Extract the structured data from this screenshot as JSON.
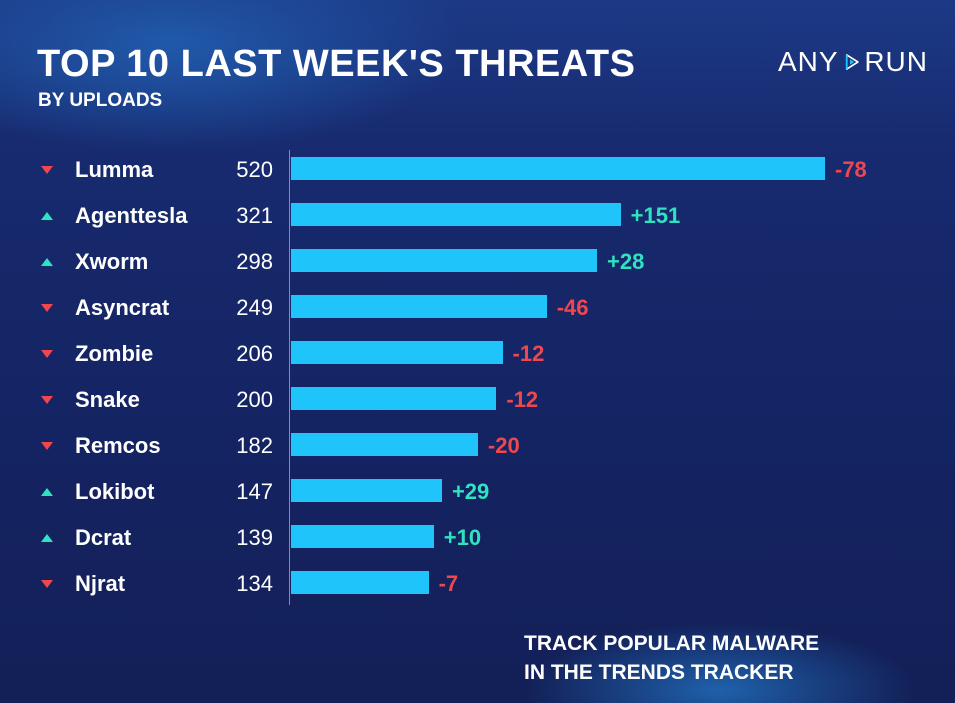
{
  "header": {
    "title": "TOP 10 LAST WEEK'S THREATS",
    "subtitle": "BY UPLOADS",
    "logo_left": "ANY",
    "logo_right": "RUN"
  },
  "footer": {
    "line1": "TRACK POPULAR MALWARE",
    "line2": "IN THE TRENDS TRACKER"
  },
  "colors": {
    "bar": "#1fc4fb",
    "up": "#2fe3c0",
    "down": "#f0474e",
    "background": "#132156"
  },
  "chart_data": {
    "type": "bar",
    "orientation": "horizontal",
    "title": "TOP 10 LAST WEEK'S THREATS",
    "subtitle": "BY UPLOADS",
    "xlim": [
      0,
      520
    ],
    "categories": [
      "Lumma",
      "Agenttesla",
      "Xworm",
      "Asyncrat",
      "Zombie",
      "Snake",
      "Remcos",
      "Lokibot",
      "Dcrat",
      "Njrat"
    ],
    "values": [
      520,
      321,
      298,
      249,
      206,
      200,
      182,
      147,
      139,
      134
    ],
    "changes": [
      "-78",
      "+151",
      "+28",
      "-46",
      "-12",
      "-12",
      "-20",
      "+29",
      "+10",
      "-7"
    ],
    "trend": [
      "down",
      "up",
      "up",
      "down",
      "down",
      "down",
      "down",
      "up",
      "up",
      "down"
    ]
  }
}
